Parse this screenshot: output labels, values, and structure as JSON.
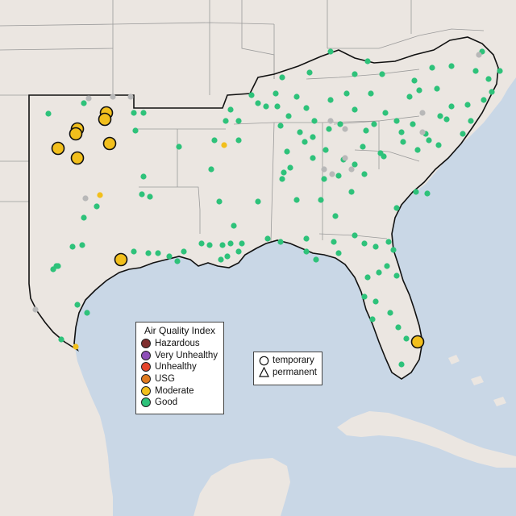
{
  "legend": {
    "title": "Air Quality Index",
    "categories": [
      {
        "label": "Hazardous",
        "color": "#7e2d2d"
      },
      {
        "label": "Very Unhealthy",
        "color": "#8e4fb8"
      },
      {
        "label": "Unhealthy",
        "color": "#e5452c"
      },
      {
        "label": "USG",
        "color": "#e07a1f"
      },
      {
        "label": "Moderate",
        "color": "#f2bf1c"
      },
      {
        "label": "Good",
        "color": "#2ec27a"
      }
    ]
  },
  "type_legend": {
    "temporary": "temporary",
    "permanent": "permanent"
  },
  "colors": {
    "water": "#c9d7e6",
    "land": "#ebe6e1",
    "land_outside": "#e2dcd6",
    "state_border": "#9a9a9a",
    "region_border": "#111111",
    "no_data": "#b8b8b8"
  },
  "monitors": {
    "good": [
      [
        60,
        141
      ],
      [
        104,
        128
      ],
      [
        166,
        140
      ],
      [
        178,
        140
      ],
      [
        168,
        162
      ],
      [
        222,
        182
      ],
      [
        178,
        219
      ],
      [
        176,
        241
      ],
      [
        186,
        244
      ],
      [
        120,
        256
      ],
      [
        104,
        270
      ],
      [
        102,
        304
      ],
      [
        90,
        306
      ],
      [
        70,
        330
      ],
      [
        66,
        334
      ],
      [
        72,
        330
      ],
      [
        96,
        378
      ],
      [
        108,
        388
      ],
      [
        76,
        421
      ],
      [
        166,
        312
      ],
      [
        184,
        314
      ],
      [
        196,
        314
      ],
      [
        210,
        318
      ],
      [
        220,
        324
      ],
      [
        228,
        312
      ],
      [
        250,
        302
      ],
      [
        260,
        304
      ],
      [
        276,
        304
      ],
      [
        274,
        322
      ],
      [
        282,
        318
      ],
      [
        286,
        302
      ],
      [
        296,
        312
      ],
      [
        290,
        280
      ],
      [
        300,
        302
      ],
      [
        320,
        250
      ],
      [
        332,
        296
      ],
      [
        348,
        300
      ],
      [
        380,
        296
      ],
      [
        380,
        312
      ],
      [
        392,
        322
      ],
      [
        420,
        314
      ],
      [
        414,
        300
      ],
      [
        440,
        292
      ],
      [
        452,
        302
      ],
      [
        466,
        306
      ],
      [
        456,
        344
      ],
      [
        470,
        338
      ],
      [
        482,
        300
      ],
      [
        488,
        310
      ],
      [
        480,
        330
      ],
      [
        492,
        342
      ],
      [
        452,
        368
      ],
      [
        466,
        374
      ],
      [
        462,
        396
      ],
      [
        484,
        388
      ],
      [
        494,
        406
      ],
      [
        504,
        420
      ],
      [
        498,
        452
      ],
      [
        262,
        210
      ],
      [
        266,
        174
      ],
      [
        272,
        250
      ],
      [
        280,
        150
      ],
      [
        286,
        136
      ],
      [
        296,
        150
      ],
      [
        296,
        174
      ],
      [
        312,
        118
      ],
      [
        330,
        132
      ],
      [
        342,
        116
      ],
      [
        344,
        132
      ],
      [
        358,
        144
      ],
      [
        368,
        120
      ],
      [
        372,
        164
      ],
      [
        356,
        188
      ],
      [
        360,
        208
      ],
      [
        352,
        214
      ],
      [
        350,
        222
      ],
      [
        368,
        248
      ],
      [
        398,
        248
      ],
      [
        416,
        268
      ],
      [
        420,
        218
      ],
      [
        436,
        238
      ],
      [
        452,
        216
      ],
      [
        440,
        204
      ],
      [
        450,
        182
      ],
      [
        464,
        154
      ],
      [
        476,
        194
      ],
      [
        498,
        164
      ],
      [
        500,
        176
      ],
      [
        512,
        154
      ],
      [
        528,
        166
      ],
      [
        546,
        144
      ],
      [
        560,
        132
      ],
      [
        532,
        174
      ],
      [
        518,
        186
      ],
      [
        544,
        180
      ],
      [
        574,
        166
      ],
      [
        554,
        148
      ],
      [
        584,
        150
      ],
      [
        600,
        124
      ],
      [
        580,
        130
      ],
      [
        610,
        114
      ],
      [
        606,
        98
      ],
      [
        620,
        88
      ],
      [
        598,
        64
      ],
      [
        590,
        88
      ],
      [
        560,
        82
      ],
      [
        536,
        84
      ],
      [
        514,
        100
      ],
      [
        474,
        92
      ],
      [
        456,
        76
      ],
      [
        440,
        92
      ],
      [
        430,
        116
      ],
      [
        410,
        64
      ],
      [
        384,
        90
      ],
      [
        350,
        96
      ],
      [
        320,
        128
      ],
      [
        348,
        156
      ],
      [
        390,
        150
      ],
      [
        410,
        124
      ],
      [
        440,
        136
      ],
      [
        460,
        116
      ],
      [
        478,
        140
      ],
      [
        492,
        150
      ],
      [
        508,
        120
      ],
      [
        520,
        112
      ],
      [
        388,
        196
      ],
      [
        378,
        176
      ],
      [
        402,
        222
      ],
      [
        404,
        186
      ],
      [
        426,
        198
      ],
      [
        454,
        162
      ],
      [
        530,
        240
      ],
      [
        492,
        258
      ],
      [
        516,
        238
      ],
      [
        472,
        190
      ],
      [
        388,
        170
      ],
      [
        380,
        134
      ],
      [
        422,
        154
      ],
      [
        408,
        160
      ],
      [
        542,
        110
      ]
    ],
    "moderate_small": [
      [
        278,
        180
      ],
      [
        124,
        242
      ],
      [
        94,
        430
      ]
    ],
    "no_data": [
      [
        110,
        122
      ],
      [
        140,
        120
      ],
      [
        162,
        120
      ],
      [
        106,
        246
      ],
      [
        44,
        384
      ],
      [
        410,
        150
      ],
      [
        428,
        160
      ],
      [
        412,
        216
      ],
      [
        428,
        196
      ],
      [
        436,
        210
      ],
      [
        524,
        140
      ],
      [
        524,
        164
      ],
      [
        402,
        210
      ],
      [
        594,
        68
      ]
    ],
    "moderate_large": [
      [
        96,
        160
      ],
      [
        94,
        166
      ],
      [
        132,
        140
      ],
      [
        130,
        148
      ],
      [
        72,
        184
      ],
      [
        96,
        196
      ],
      [
        136,
        178
      ],
      [
        150,
        322
      ],
      [
        518,
        424
      ]
    ]
  }
}
